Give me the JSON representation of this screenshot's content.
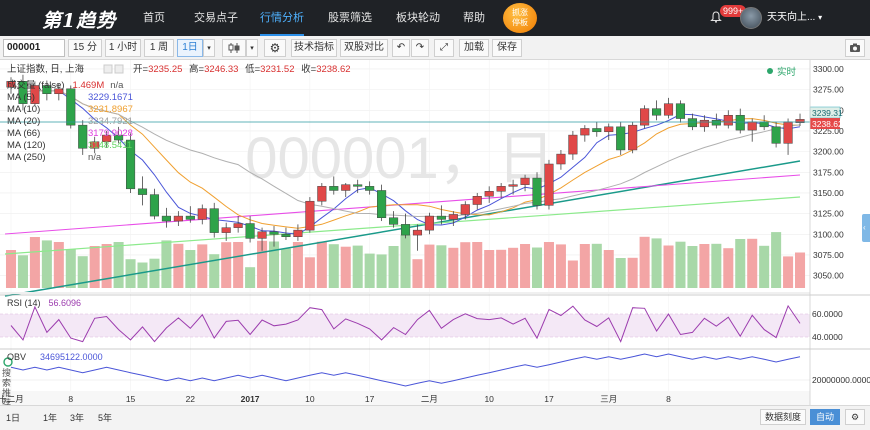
{
  "nav": {
    "logo": "第1趋势",
    "items": [
      "首页",
      "交易点子",
      "行情分析",
      "股票筛选",
      "板块轮动",
      "帮助"
    ],
    "active": "行情分析",
    "promo": [
      "抓涨",
      "停板"
    ],
    "badge": "999+",
    "username": "天天向上..."
  },
  "toolbar": {
    "symbol": "000001",
    "periods": [
      "15 分",
      "1 小时",
      "1 周",
      "1日"
    ],
    "active_period": "1日",
    "buttons": [
      "技术指标",
      "双股对比",
      "加载",
      "保存"
    ]
  },
  "legend": {
    "title": "上证指数, 日, 上海",
    "open_label": "开=",
    "open": "3235.25",
    "high_label": "高=",
    "high": "3246.33",
    "low_label": "低=",
    "low": "3231.52",
    "close_label": "收=",
    "close": "3238.62",
    "realtime": "实时",
    "volume_label": "成交量 (false)",
    "volume_value": "1.469M",
    "volume_na": "n/a",
    "ma": [
      {
        "label": "MA (5)",
        "value": "3229.1671",
        "color": "#4a55d8"
      },
      {
        "label": "MA (10)",
        "value": "3231.8967",
        "color": "#f0a030"
      },
      {
        "label": "MA (20)",
        "value": "3234.7921",
        "color": "#a0a0a0"
      },
      {
        "label": "MA (66)",
        "value": "3179.9028",
        "color": "#e040e0"
      },
      {
        "label": "MA (120)",
        "value": "3148.5411",
        "color": "#5ed35e"
      },
      {
        "label": "MA (250)",
        "value": "n/a",
        "color": "#555555"
      }
    ]
  },
  "watermark": "000001，日",
  "rsi": {
    "label": "RSI (14)",
    "value": "56.6096",
    "ticks": [
      "60.0000",
      "40.0000"
    ]
  },
  "obv": {
    "label": "OBV",
    "value": "34695122.0000",
    "tick": "20000000.0000"
  },
  "bottom": {
    "ranges": [
      "1日",
      "1年",
      "3年",
      "5年"
    ],
    "right": [
      "数据刻度",
      "自动"
    ],
    "side": "搜索推荐"
  },
  "price_badges": {
    "upper": "3239.31",
    "lower": "3238.62"
  },
  "chart_data": {
    "type": "candlestick",
    "title": "上证指数, 日, 上海",
    "y_ticks": [
      3300,
      3275,
      3250,
      3225,
      3200,
      3175,
      3150,
      3125,
      3100,
      3075,
      3050
    ],
    "ylim": [
      3035,
      3306
    ],
    "x_tick_labels": [
      {
        "label": "十二月",
        "index": 0
      },
      {
        "label": "8",
        "index": 5
      },
      {
        "label": "15",
        "index": 10
      },
      {
        "label": "22",
        "index": 15
      },
      {
        "label": "2017",
        "index": 20
      },
      {
        "label": "10",
        "index": 25
      },
      {
        "label": "17",
        "index": 30
      },
      {
        "label": "二月",
        "index": 35
      },
      {
        "label": "10",
        "index": 40
      },
      {
        "label": "17",
        "index": 45
      },
      {
        "label": "三月",
        "index": 50
      },
      {
        "label": "8",
        "index": 55
      }
    ],
    "candles": [
      {
        "o": 3278,
        "h": 3290,
        "l": 3270,
        "c": 3285
      },
      {
        "o": 3285,
        "h": 3293,
        "l": 3250,
        "c": 3258
      },
      {
        "o": 3258,
        "h": 3285,
        "l": 3255,
        "c": 3280
      },
      {
        "o": 3280,
        "h": 3286,
        "l": 3262,
        "c": 3270
      },
      {
        "o": 3270,
        "h": 3282,
        "l": 3262,
        "c": 3276
      },
      {
        "o": 3276,
        "h": 3280,
        "l": 3228,
        "c": 3232
      },
      {
        "o": 3232,
        "h": 3238,
        "l": 3196,
        "c": 3204
      },
      {
        "o": 3204,
        "h": 3218,
        "l": 3198,
        "c": 3212
      },
      {
        "o": 3212,
        "h": 3225,
        "l": 3205,
        "c": 3220
      },
      {
        "o": 3220,
        "h": 3230,
        "l": 3210,
        "c": 3214
      },
      {
        "o": 3214,
        "h": 3222,
        "l": 3150,
        "c": 3155
      },
      {
        "o": 3155,
        "h": 3170,
        "l": 3135,
        "c": 3148
      },
      {
        "o": 3148,
        "h": 3155,
        "l": 3118,
        "c": 3122
      },
      {
        "o": 3122,
        "h": 3132,
        "l": 3108,
        "c": 3116
      },
      {
        "o": 3116,
        "h": 3128,
        "l": 3110,
        "c": 3122
      },
      {
        "o": 3122,
        "h": 3134,
        "l": 3114,
        "c": 3118
      },
      {
        "o": 3118,
        "h": 3136,
        "l": 3112,
        "c": 3131
      },
      {
        "o": 3131,
        "h": 3138,
        "l": 3096,
        "c": 3102
      },
      {
        "o": 3102,
        "h": 3114,
        "l": 3092,
        "c": 3108
      },
      {
        "o": 3108,
        "h": 3122,
        "l": 3102,
        "c": 3113
      },
      {
        "o": 3113,
        "h": 3122,
        "l": 3090,
        "c": 3095
      },
      {
        "o": 3095,
        "h": 3108,
        "l": 3080,
        "c": 3103
      },
      {
        "o": 3103,
        "h": 3110,
        "l": 3085,
        "c": 3100
      },
      {
        "o": 3100,
        "h": 3108,
        "l": 3093,
        "c": 3097
      },
      {
        "o": 3097,
        "h": 3112,
        "l": 3092,
        "c": 3105
      },
      {
        "o": 3105,
        "h": 3145,
        "l": 3102,
        "c": 3140
      },
      {
        "o": 3140,
        "h": 3162,
        "l": 3135,
        "c": 3158
      },
      {
        "o": 3158,
        "h": 3170,
        "l": 3148,
        "c": 3153
      },
      {
        "o": 3153,
        "h": 3162,
        "l": 3145,
        "c": 3160
      },
      {
        "o": 3160,
        "h": 3166,
        "l": 3150,
        "c": 3158
      },
      {
        "o": 3158,
        "h": 3164,
        "l": 3148,
        "c": 3153
      },
      {
        "o": 3153,
        "h": 3160,
        "l": 3116,
        "c": 3120
      },
      {
        "o": 3120,
        "h": 3128,
        "l": 3108,
        "c": 3112
      },
      {
        "o": 3112,
        "h": 3125,
        "l": 3095,
        "c": 3099
      },
      {
        "o": 3099,
        "h": 3112,
        "l": 3080,
        "c": 3105
      },
      {
        "o": 3105,
        "h": 3126,
        "l": 3100,
        "c": 3122
      },
      {
        "o": 3122,
        "h": 3135,
        "l": 3112,
        "c": 3118
      },
      {
        "o": 3118,
        "h": 3128,
        "l": 3110,
        "c": 3124
      },
      {
        "o": 3124,
        "h": 3140,
        "l": 3118,
        "c": 3136
      },
      {
        "o": 3136,
        "h": 3150,
        "l": 3130,
        "c": 3146
      },
      {
        "o": 3146,
        "h": 3158,
        "l": 3138,
        "c": 3152
      },
      {
        "o": 3152,
        "h": 3162,
        "l": 3144,
        "c": 3158
      },
      {
        "o": 3158,
        "h": 3166,
        "l": 3148,
        "c": 3160
      },
      {
        "o": 3160,
        "h": 3172,
        "l": 3152,
        "c": 3168
      },
      {
        "o": 3168,
        "h": 3175,
        "l": 3130,
        "c": 3135
      },
      {
        "o": 3135,
        "h": 3190,
        "l": 3130,
        "c": 3185
      },
      {
        "o": 3185,
        "h": 3202,
        "l": 3178,
        "c": 3197
      },
      {
        "o": 3197,
        "h": 3225,
        "l": 3190,
        "c": 3220
      },
      {
        "o": 3220,
        "h": 3232,
        "l": 3212,
        "c": 3228
      },
      {
        "o": 3228,
        "h": 3236,
        "l": 3218,
        "c": 3224
      },
      {
        "o": 3224,
        "h": 3234,
        "l": 3214,
        "c": 3230
      },
      {
        "o": 3230,
        "h": 3236,
        "l": 3196,
        "c": 3202
      },
      {
        "o": 3202,
        "h": 3236,
        "l": 3198,
        "c": 3232
      },
      {
        "o": 3232,
        "h": 3256,
        "l": 3228,
        "c": 3252
      },
      {
        "o": 3252,
        "h": 3262,
        "l": 3238,
        "c": 3244
      },
      {
        "o": 3244,
        "h": 3265,
        "l": 3240,
        "c": 3258
      },
      {
        "o": 3258,
        "h": 3262,
        "l": 3235,
        "c": 3240
      },
      {
        "o": 3240,
        "h": 3246,
        "l": 3226,
        "c": 3230
      },
      {
        "o": 3230,
        "h": 3244,
        "l": 3224,
        "c": 3238
      },
      {
        "o": 3238,
        "h": 3246,
        "l": 3228,
        "c": 3232
      },
      {
        "o": 3232,
        "h": 3250,
        "l": 3228,
        "c": 3244
      },
      {
        "o": 3244,
        "h": 3252,
        "l": 3222,
        "c": 3226
      },
      {
        "o": 3226,
        "h": 3240,
        "l": 3212,
        "c": 3236
      },
      {
        "o": 3236,
        "h": 3244,
        "l": 3226,
        "c": 3230
      },
      {
        "o": 3230,
        "h": 3236,
        "l": 3205,
        "c": 3210
      },
      {
        "o": 3210,
        "h": 3240,
        "l": 3196,
        "c": 3236
      },
      {
        "o": 3235,
        "h": 3246,
        "l": 3231,
        "c": 3239
      }
    ]
  }
}
